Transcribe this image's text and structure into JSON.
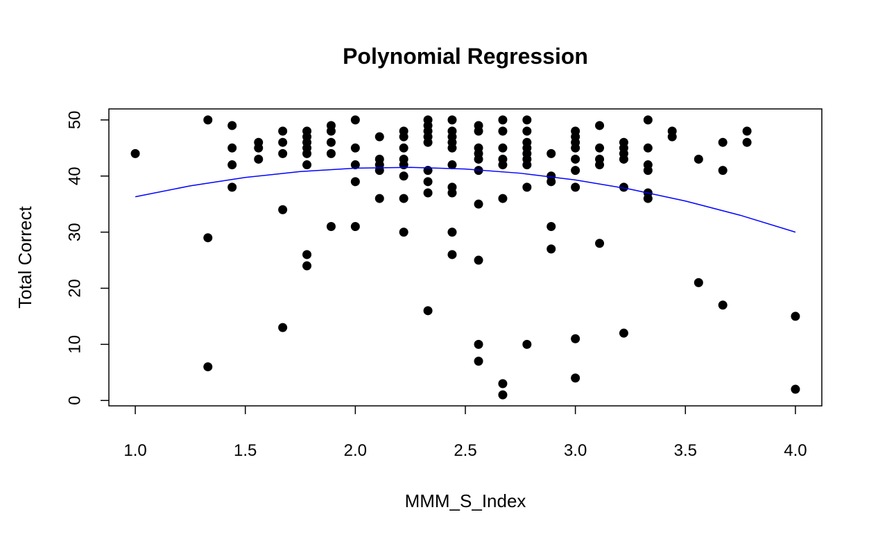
{
  "chart_data": {
    "type": "scatter",
    "title": "Polynomial Regression",
    "x_label": "MMM_S_Index",
    "y_label": "Total Correct",
    "xlim": [
      0.88,
      4.12
    ],
    "ylim": [
      -0.96,
      51.96
    ],
    "xticks": [
      {
        "value": 1,
        "label": "1.0"
      },
      {
        "value": 1.5,
        "label": "1.5"
      },
      {
        "value": 2,
        "label": "2.0"
      },
      {
        "value": 2.5,
        "label": "2.5"
      },
      {
        "value": 3,
        "label": "3.0"
      },
      {
        "value": 3.5,
        "label": "3.5"
      },
      {
        "value": 4,
        "label": "4.0"
      }
    ],
    "yticks": [
      0,
      10,
      20,
      30,
      40,
      50
    ],
    "grid": false,
    "point_color": "#000000",
    "points": [
      {
        "x": 1.0,
        "y": [
          44
        ]
      },
      {
        "x": 1.33,
        "y": [
          50,
          29,
          6
        ]
      },
      {
        "x": 1.44,
        "y": [
          49,
          45,
          42,
          38
        ]
      },
      {
        "x": 1.56,
        "y": [
          46,
          45,
          43
        ]
      },
      {
        "x": 1.67,
        "y": [
          48,
          46,
          44,
          34,
          13
        ]
      },
      {
        "x": 1.78,
        "y": [
          48,
          47,
          46,
          45,
          44,
          42,
          26,
          24
        ]
      },
      {
        "x": 1.89,
        "y": [
          49,
          48,
          46,
          44,
          31
        ]
      },
      {
        "x": 2.0,
        "y": [
          50,
          45,
          42,
          39,
          31
        ]
      },
      {
        "x": 2.11,
        "y": [
          47,
          43,
          42,
          41,
          36
        ]
      },
      {
        "x": 2.22,
        "y": [
          48,
          47,
          45,
          43,
          42,
          40,
          36,
          30
        ]
      },
      {
        "x": 2.33,
        "y": [
          50,
          49,
          48,
          47,
          46,
          41,
          39,
          37,
          16
        ]
      },
      {
        "x": 2.44,
        "y": [
          50,
          48,
          47,
          46,
          45,
          42,
          38,
          37,
          30,
          26
        ]
      },
      {
        "x": 2.56,
        "y": [
          49,
          48,
          45,
          44,
          43,
          41,
          35,
          25,
          10,
          7
        ]
      },
      {
        "x": 2.67,
        "y": [
          50,
          48,
          45,
          43,
          42,
          36,
          3,
          1
        ]
      },
      {
        "x": 2.78,
        "y": [
          50,
          48,
          46,
          45,
          44,
          43,
          42,
          38,
          10
        ]
      },
      {
        "x": 2.89,
        "y": [
          44,
          40,
          39,
          31,
          27
        ]
      },
      {
        "x": 3.0,
        "y": [
          48,
          47,
          46,
          45,
          43,
          41,
          38,
          11,
          4
        ]
      },
      {
        "x": 3.11,
        "y": [
          49,
          45,
          43,
          42,
          28
        ]
      },
      {
        "x": 3.22,
        "y": [
          46,
          45,
          44,
          43,
          38,
          12
        ]
      },
      {
        "x": 3.33,
        "y": [
          50,
          45,
          42,
          41,
          37,
          36
        ]
      },
      {
        "x": 3.44,
        "y": [
          48,
          47
        ]
      },
      {
        "x": 3.56,
        "y": [
          43,
          21
        ]
      },
      {
        "x": 3.67,
        "y": [
          46,
          41,
          17
        ]
      },
      {
        "x": 3.78,
        "y": [
          48,
          46
        ]
      },
      {
        "x": 4.0,
        "y": [
          15,
          2
        ]
      }
    ],
    "fit": {
      "color": "#0000ff",
      "x": [
        1.0,
        1.25,
        1.5,
        1.75,
        2.0,
        2.25,
        2.5,
        2.75,
        3.0,
        3.25,
        3.5,
        3.75,
        4.0
      ],
      "y": [
        36.3,
        38.25,
        39.75,
        40.8,
        41.4,
        41.55,
        41.25,
        40.5,
        39.3,
        37.65,
        35.55,
        33.0,
        30.0
      ]
    }
  }
}
